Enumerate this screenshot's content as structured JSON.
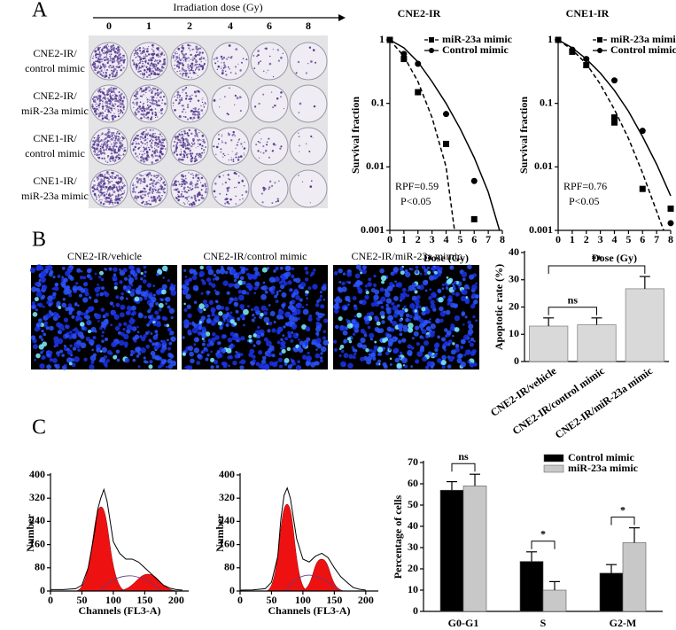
{
  "panel_labels": [
    "A",
    "B",
    "C"
  ],
  "clonogenic": {
    "title": "Irradiation dose (Gy)",
    "doses": [
      0,
      1,
      2,
      4,
      6,
      8
    ],
    "rows": [
      [
        "CNE2-IR/",
        "control mimic"
      ],
      [
        "CNE2-IR/",
        "miR-23a mimic"
      ],
      [
        "CNE1-IR/",
        "control mimic"
      ],
      [
        "CNE1-IR/",
        "miR-23a mimic"
      ]
    ]
  },
  "images": {
    "labels": [
      "CNE2-IR/vehicle",
      "CNE2-IR/control mimic",
      "CNE2-IR/miR-23a mimic"
    ]
  },
  "chart_data": [
    {
      "type": "survival",
      "title": "CNE2-IR",
      "xlabel": "Dose (Gy)",
      "ylabel": "Survival fraction",
      "log_y": true,
      "xlim": [
        0,
        8
      ],
      "ylim": [
        0.001,
        1
      ],
      "xticks": [
        0,
        1,
        2,
        3,
        4,
        5,
        6,
        7,
        8
      ],
      "yticks": [
        1,
        0.1,
        0.01,
        0.001
      ],
      "legend": "upper right",
      "annotations": [
        "RPF=0.59",
        "P<0.05"
      ],
      "series": [
        {
          "name": "miR-23a mimic",
          "color": "#000000",
          "marker": "square",
          "dash": "dashed",
          "x": [
            0,
            1,
            2,
            4,
            6
          ],
          "values": [
            1,
            0.5,
            0.15,
            0.023,
            0.0015
          ],
          "curve_x": [
            0,
            1,
            2,
            3,
            4,
            4.6
          ],
          "curve_values": [
            1,
            0.55,
            0.22,
            0.06,
            0.01,
            0.001
          ]
        },
        {
          "name": "Control mimic",
          "color": "#000000",
          "marker": "circle",
          "dash": "solid",
          "x": [
            0,
            1,
            2,
            4,
            6
          ],
          "values": [
            1,
            0.6,
            0.42,
            0.068,
            0.006
          ],
          "curve_x": [
            0,
            1,
            2,
            3,
            4,
            5,
            6,
            7,
            7.8
          ],
          "curve_values": [
            1,
            0.75,
            0.45,
            0.22,
            0.1,
            0.04,
            0.014,
            0.004,
            0.001
          ]
        }
      ]
    },
    {
      "type": "survival",
      "title": "CNE1-IR",
      "xlabel": "Dose (Gy)",
      "ylabel": "Survival fraction",
      "log_y": true,
      "xlim": [
        0,
        8
      ],
      "ylim": [
        0.001,
        1
      ],
      "xticks": [
        0,
        1,
        2,
        3,
        4,
        5,
        6,
        7,
        8
      ],
      "yticks": [
        1,
        0.1,
        0.01,
        0.001
      ],
      "legend": "upper right",
      "annotations": [
        "RPF=0.76",
        "P<0.05"
      ],
      "series": [
        {
          "name": "miR-23a mimic",
          "color": "#000000",
          "marker": "square",
          "dash": "dashed",
          "x": [
            0,
            1,
            2,
            4,
            4,
            6,
            8
          ],
          "values": [
            1,
            0.65,
            0.4,
            0.06,
            0.05,
            0.0045,
            0.0022
          ],
          "curve_x": [
            0,
            1,
            2,
            3,
            4,
            5,
            6,
            7,
            7.5
          ],
          "curve_values": [
            1,
            0.7,
            0.42,
            0.2,
            0.08,
            0.028,
            0.008,
            0.002,
            0.001
          ]
        },
        {
          "name": "Control mimic",
          "color": "#000000",
          "marker": "circle",
          "dash": "solid",
          "x": [
            0,
            1,
            2,
            4,
            6,
            8
          ],
          "values": [
            1,
            0.7,
            0.5,
            0.23,
            0.037,
            0.0013
          ],
          "curve_x": [
            0,
            1,
            2,
            3,
            4,
            5,
            6,
            7,
            8
          ],
          "curve_values": [
            1,
            0.75,
            0.5,
            0.3,
            0.16,
            0.075,
            0.03,
            0.011,
            0.0035
          ]
        }
      ]
    },
    {
      "type": "bar",
      "ylabel": "Apoptotic rate (%)",
      "categories": [
        "CNE2-IR/vehicle",
        "CNE2-IR/control mimic",
        "CNE2-IR/miR-23a mimic"
      ],
      "values": [
        13,
        13.5,
        26.7
      ],
      "errors": [
        3,
        2.5,
        4.5
      ],
      "color": "#d9d9d9",
      "ylim": [
        0,
        40
      ],
      "yticks": [
        0,
        10,
        20,
        30,
        40
      ],
      "significance": [
        {
          "label": "ns",
          "pair": [
            0,
            1
          ]
        },
        {
          "label": "**",
          "pair": [
            0,
            2
          ]
        }
      ]
    },
    {
      "type": "flow_histogram",
      "xlabel": "Channels (FL3-A)",
      "ylabel": "Number",
      "xlim": [
        0,
        220
      ],
      "ylim": [
        0,
        400
      ],
      "xticks": [
        0,
        50,
        100,
        150,
        200
      ],
      "yticks": [
        0,
        80,
        160,
        240,
        320,
        400
      ],
      "x": [
        0,
        20,
        40,
        50,
        60,
        70,
        75,
        80,
        85,
        90,
        95,
        100,
        110,
        120,
        130,
        140,
        150,
        160,
        170,
        180,
        190,
        200,
        210
      ],
      "values": [
        5,
        5,
        8,
        20,
        80,
        200,
        280,
        320,
        350,
        310,
        240,
        170,
        130,
        110,
        110,
        100,
        80,
        60,
        40,
        20,
        10,
        5,
        3
      ]
    },
    {
      "type": "flow_histogram",
      "xlabel": "Channels (FL3-A)",
      "ylabel": "Number",
      "xlim": [
        0,
        220
      ],
      "ylim": [
        0,
        400
      ],
      "xticks": [
        0,
        50,
        100,
        150,
        200
      ],
      "yticks": [
        0,
        80,
        160,
        240,
        320,
        400
      ],
      "x": [
        0,
        20,
        40,
        50,
        60,
        65,
        70,
        75,
        80,
        85,
        90,
        100,
        110,
        120,
        130,
        140,
        150,
        160,
        170,
        180,
        190,
        200
      ],
      "values": [
        3,
        4,
        8,
        30,
        120,
        250,
        330,
        355,
        320,
        250,
        180,
        110,
        100,
        120,
        130,
        115,
        80,
        50,
        30,
        12,
        6,
        3
      ]
    },
    {
      "type": "grouped_bar",
      "ylabel": "Percentage of cells",
      "categories": [
        "G0-G1",
        "S",
        "G2-M"
      ],
      "series": [
        {
          "name": "Control mimic",
          "color": "#000000",
          "values": [
            57,
            23.5,
            18
          ],
          "errors": [
            4,
            4.5,
            4
          ]
        },
        {
          "name": "miR-23a mimic",
          "color": "#c8c8c8",
          "values": [
            59,
            10,
            32.3
          ],
          "errors": [
            5.5,
            4,
            7
          ]
        }
      ],
      "ylim": [
        0,
        70
      ],
      "yticks": [
        0,
        10,
        20,
        30,
        40,
        50,
        60,
        70
      ],
      "legend": "upper right",
      "significance": [
        {
          "label": "ns",
          "pair": [
            0,
            0
          ]
        },
        {
          "label": "*",
          "pair": [
            1,
            1
          ]
        },
        {
          "label": "*",
          "pair": [
            2,
            2
          ]
        }
      ]
    }
  ]
}
